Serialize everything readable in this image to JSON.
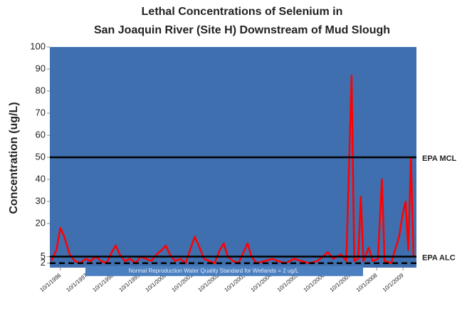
{
  "chart_data": {
    "type": "line",
    "title": [
      "Lethal Concentrations of Selenium in",
      "San Joaquin River (Site H) Downstream of Mud Slough"
    ],
    "y_label": "Concentration (ug/L)",
    "xlim": [
      1996.35,
      2010.26
    ],
    "ylim": [
      0,
      100
    ],
    "yticks": [
      2,
      5,
      20,
      30,
      40,
      50,
      60,
      70,
      80,
      90,
      100
    ],
    "xticks": [
      {
        "value": 1996.75,
        "label": "10/1/1996"
      },
      {
        "value": 1997.75,
        "label": "10/1/1997"
      },
      {
        "value": 1998.75,
        "label": "10/1/1998"
      },
      {
        "value": 1999.75,
        "label": "10/1/1999"
      },
      {
        "value": 2000.75,
        "label": "10/1/2000"
      },
      {
        "value": 2001.75,
        "label": "10/1/2001"
      },
      {
        "value": 2002.75,
        "label": "10/1/2002"
      },
      {
        "value": 2003.75,
        "label": "10/1/2003"
      },
      {
        "value": 2004.75,
        "label": "10/1/2004"
      },
      {
        "value": 2005.75,
        "label": "10/1/2005"
      },
      {
        "value": 2006.75,
        "label": "10/1/2006"
      },
      {
        "value": 2007.75,
        "label": "10/1/2007"
      },
      {
        "value": 2008.75,
        "label": "10/1/2008"
      },
      {
        "value": 2009.75,
        "label": "10/1/2009"
      }
    ],
    "reference_lines": [
      {
        "value": 50,
        "label": "EPA MCL",
        "color": "#000000",
        "dashed": false
      },
      {
        "value": 5,
        "label": "EPA ALC",
        "color": "#000000",
        "dashed": false
      },
      {
        "value": 2,
        "label": "Normal Reproduction Water Quality Standard for Wetlands = 2 ug/L",
        "color": "#000000",
        "dashed": true
      }
    ],
    "series": [
      {
        "color": "#ff0000",
        "x": [
          1996.4,
          1996.6,
          1996.75,
          1996.9,
          1997.1,
          1997.3,
          1997.5,
          1997.7,
          1997.9,
          1998.1,
          1998.3,
          1998.5,
          1998.7,
          1998.85,
          1999.0,
          1999.2,
          1999.4,
          1999.6,
          1999.8,
          2000.0,
          2000.2,
          2000.4,
          2000.6,
          2000.75,
          2000.9,
          2001.1,
          2001.3,
          2001.5,
          2001.7,
          2001.85,
          2002.0,
          2002.2,
          2002.4,
          2002.6,
          2002.8,
          2002.95,
          2003.1,
          2003.3,
          2003.5,
          2003.7,
          2003.85,
          2004.0,
          2004.2,
          2004.5,
          2004.8,
          2005.0,
          2005.3,
          2005.6,
          2005.9,
          2006.2,
          2006.5,
          2006.7,
          2006.9,
          2007.1,
          2007.4,
          2007.6,
          2007.8,
          2007.9,
          2008.05,
          2008.15,
          2008.25,
          2008.45,
          2008.6,
          2008.8,
          2008.95,
          2009.05,
          2009.3,
          2009.6,
          2009.75,
          2009.85,
          2009.95,
          2010.05,
          2010.15
        ],
        "values": [
          3,
          8,
          18,
          14,
          6,
          3,
          2,
          4,
          3,
          5,
          3,
          2,
          7,
          10,
          6,
          3,
          4,
          2,
          5,
          4,
          3,
          6,
          8,
          10,
          6,
          3,
          4,
          2,
          9,
          14,
          10,
          4,
          3,
          2,
          8,
          11,
          5,
          3,
          2,
          7,
          11,
          5,
          2,
          3,
          4,
          3,
          2,
          4,
          3,
          2,
          3,
          5,
          7,
          4,
          6,
          3,
          87,
          3,
          4,
          32,
          3,
          9,
          3,
          4,
          40,
          3,
          2,
          14,
          25,
          30,
          8,
          50,
          5
        ]
      }
    ],
    "plot_background": "#3f6fae"
  }
}
